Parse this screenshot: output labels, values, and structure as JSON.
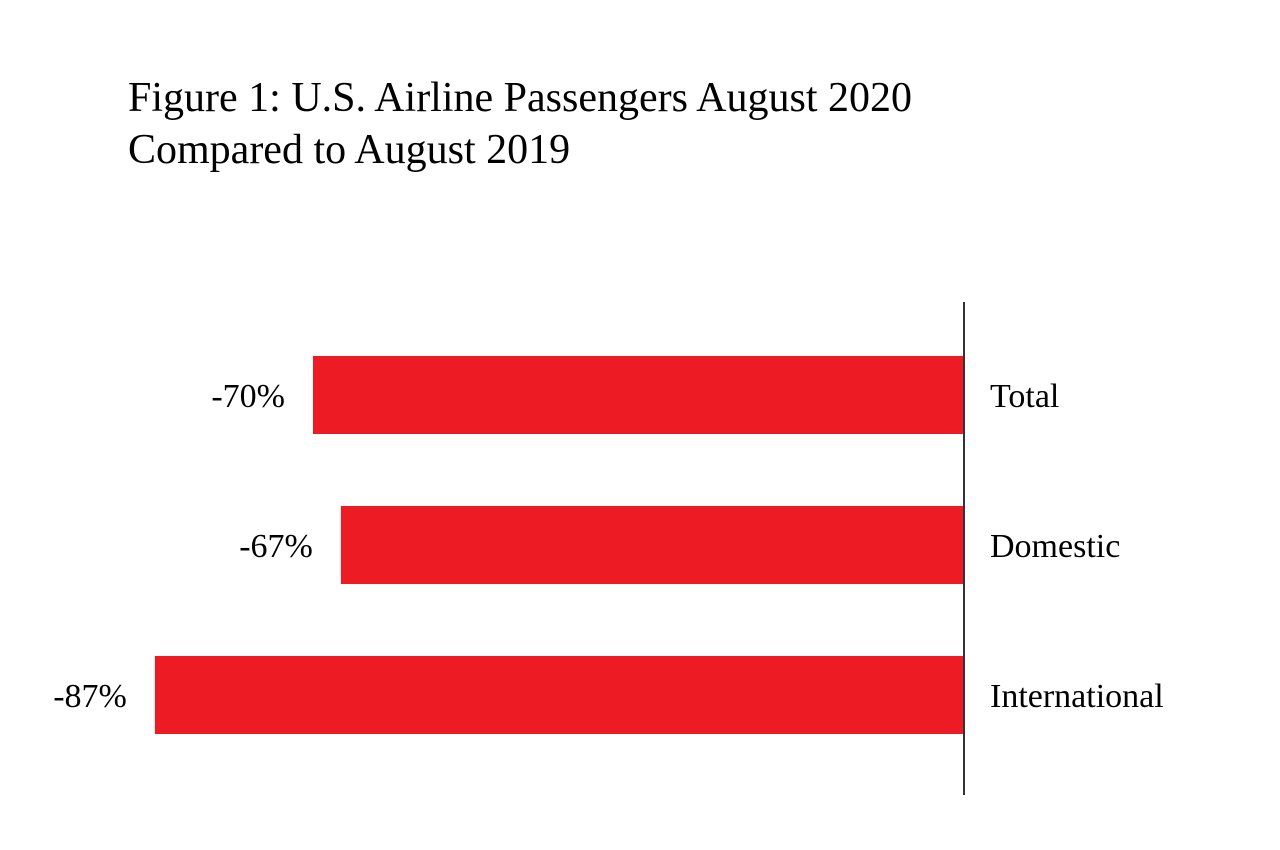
{
  "chart_data": {
    "type": "bar",
    "orientation": "horizontal",
    "title_lines": [
      "Figure 1: U.S. Airline Passengers August 2020",
      "Compared to August 2019"
    ],
    "categories": [
      "Total",
      "Domestic",
      "International"
    ],
    "values": [
      -70,
      -67,
      -87
    ],
    "value_labels": [
      "-70%",
      "-67%",
      "-87%"
    ],
    "xlabel": "",
    "ylabel": "",
    "grid": false,
    "legend": "none",
    "colors": {
      "bar": "#ED1C24",
      "axis": "#333333"
    }
  }
}
